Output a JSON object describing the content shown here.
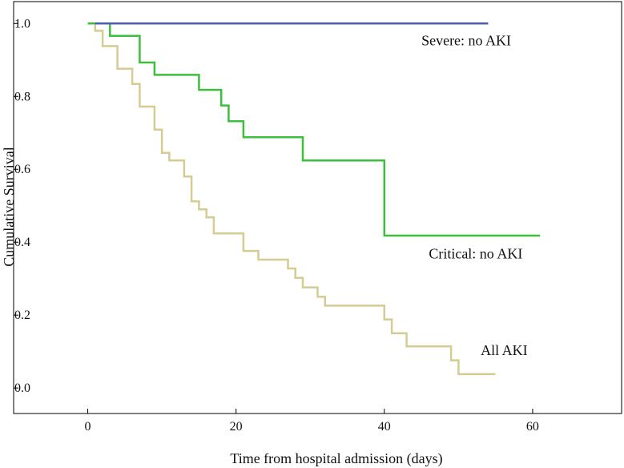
{
  "chart_data": {
    "type": "line",
    "step": true,
    "title": "",
    "xlabel": "Time from hospital admission (days)",
    "ylabel": "Cumulative Survival",
    "xlim": [
      -10,
      72
    ],
    "ylim": [
      -0.07,
      1.06
    ],
    "xticks": [
      0,
      20,
      40,
      60
    ],
    "yticks": [
      0.0,
      0.2,
      0.4,
      0.6,
      0.8,
      1.0
    ],
    "ytick_labels": [
      "0.0",
      "0.2",
      "0.4",
      "0.6",
      "0.8",
      "1.0"
    ],
    "grid": false,
    "series": [
      {
        "name": "Severe: no AKI",
        "color": "#4a5fb0",
        "label_anchor": [
          45,
          0.94
        ],
        "points": [
          [
            1,
            1.0
          ],
          [
            54,
            1.0
          ]
        ]
      },
      {
        "name": "Critical: no AKI",
        "color": "#3cbf3c",
        "label_anchor": [
          46,
          0.355
        ],
        "points": [
          [
            0,
            1.0
          ],
          [
            3,
            1.0
          ],
          [
            3,
            0.966
          ],
          [
            7,
            0.966
          ],
          [
            7,
            0.893
          ],
          [
            9,
            0.893
          ],
          [
            9,
            0.859
          ],
          [
            15,
            0.859
          ],
          [
            15,
            0.818
          ],
          [
            18,
            0.818
          ],
          [
            18,
            0.775
          ],
          [
            19,
            0.775
          ],
          [
            19,
            0.732
          ],
          [
            21,
            0.732
          ],
          [
            21,
            0.688
          ],
          [
            29,
            0.688
          ],
          [
            29,
            0.624
          ],
          [
            40,
            0.624
          ],
          [
            40,
            0.418
          ],
          [
            61,
            0.418
          ]
        ]
      },
      {
        "name": "All AKI",
        "color": "#d4cc92",
        "label_anchor": [
          53,
          0.09
        ],
        "points": [
          [
            0,
            1.0
          ],
          [
            1,
            1.0
          ],
          [
            1,
            0.98
          ],
          [
            2,
            0.98
          ],
          [
            2,
            0.938
          ],
          [
            4,
            0.938
          ],
          [
            4,
            0.876
          ],
          [
            6,
            0.876
          ],
          [
            6,
            0.834
          ],
          [
            7,
            0.834
          ],
          [
            7,
            0.772
          ],
          [
            9,
            0.772
          ],
          [
            9,
            0.709
          ],
          [
            10,
            0.709
          ],
          [
            10,
            0.645
          ],
          [
            11,
            0.645
          ],
          [
            11,
            0.624
          ],
          [
            13,
            0.624
          ],
          [
            13,
            0.58
          ],
          [
            14,
            0.58
          ],
          [
            14,
            0.512
          ],
          [
            15,
            0.512
          ],
          [
            15,
            0.49
          ],
          [
            16,
            0.49
          ],
          [
            16,
            0.468
          ],
          [
            17,
            0.468
          ],
          [
            17,
            0.424
          ],
          [
            21,
            0.424
          ],
          [
            21,
            0.376
          ],
          [
            23,
            0.376
          ],
          [
            23,
            0.352
          ],
          [
            27,
            0.352
          ],
          [
            27,
            0.328
          ],
          [
            28,
            0.328
          ],
          [
            28,
            0.302
          ],
          [
            29,
            0.302
          ],
          [
            29,
            0.276
          ],
          [
            31,
            0.276
          ],
          [
            31,
            0.25
          ],
          [
            32,
            0.25
          ],
          [
            32,
            0.226
          ],
          [
            40,
            0.226
          ],
          [
            40,
            0.188
          ],
          [
            41,
            0.188
          ],
          [
            41,
            0.15
          ],
          [
            43,
            0.15
          ],
          [
            43,
            0.114
          ],
          [
            49,
            0.114
          ],
          [
            49,
            0.076
          ],
          [
            50,
            0.076
          ],
          [
            50,
            0.038
          ],
          [
            55,
            0.038
          ]
        ]
      }
    ]
  }
}
